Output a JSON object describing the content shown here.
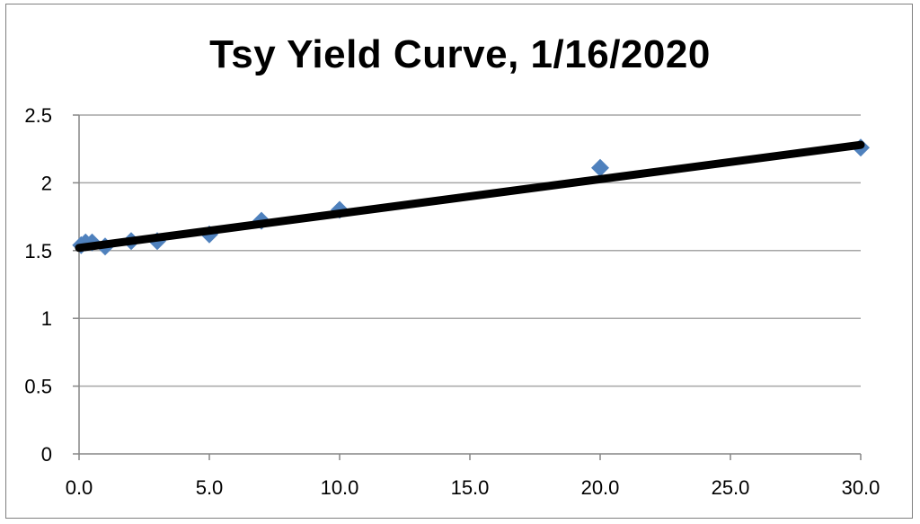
{
  "chart_data": {
    "type": "scatter",
    "title": "Tsy Yield Curve, 1/16/2020",
    "xlabel": "",
    "ylabel": "",
    "xlim": [
      0,
      30
    ],
    "ylim": [
      0,
      2.5
    ],
    "x_ticks": [
      "0.0",
      "5.0",
      "10.0",
      "15.0",
      "20.0",
      "25.0",
      "30.0"
    ],
    "y_ticks": [
      "0",
      "0.5",
      "1",
      "1.5",
      "2",
      "2.5"
    ],
    "grid": "horizontal",
    "legend": "none",
    "series": [
      {
        "marker": "diamond",
        "color": "#4f81bd",
        "x": [
          0.08,
          0.25,
          0.5,
          1,
          2,
          3,
          5,
          7,
          10,
          20,
          30
        ],
        "y": [
          1.54,
          1.56,
          1.56,
          1.53,
          1.57,
          1.57,
          1.62,
          1.72,
          1.8,
          2.11,
          2.26
        ]
      }
    ],
    "trendline": {
      "type": "linear",
      "color": "#000000",
      "x": [
        0,
        30
      ],
      "y": [
        1.52,
        2.28
      ]
    }
  },
  "colors": {
    "gridline": "#a6a6a6",
    "axis": "#868686",
    "marker": "#4f81bd",
    "trendline": "#000000"
  }
}
